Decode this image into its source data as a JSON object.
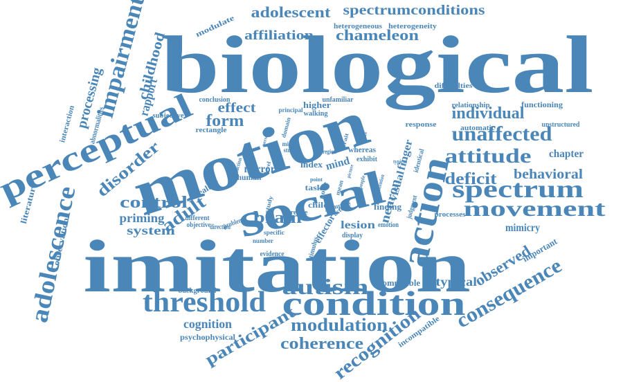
{
  "colors": {
    "word": "#4a86b8",
    "background": "#ffffff"
  },
  "words": [
    "biological",
    "imitation",
    "motion",
    "social",
    "perceptual",
    "action",
    "condition",
    "threshold",
    "autism",
    "spectrum",
    "movement",
    "adolescence",
    "impairment",
    "unaffected",
    "attitude",
    "consequence",
    "recognition",
    "participant",
    "modulation",
    "coherence",
    "cognition",
    "psychophysical",
    "adolescent",
    "spectrumconditions",
    "affiliation",
    "chameleon",
    "heterogeneous",
    "heterogeneity",
    "modulate",
    "childhood",
    "rapport",
    "processing",
    "abnormalities",
    "interaction",
    "literature",
    "observation",
    "disorder",
    "control",
    "adult",
    "priming",
    "system",
    "form",
    "effect",
    "individual",
    "deficit",
    "behavioral",
    "mimicry",
    "chapter",
    "functioning",
    "relationship",
    "difficulties",
    "automatic",
    "unstructured",
    "response",
    "identical",
    "finger",
    "visual",
    "neuron",
    "mind",
    "mirror",
    "index",
    "brain",
    "human",
    "healthy",
    "task",
    "lesion",
    "effector",
    "finding",
    "emotion",
    "processes",
    "observed",
    "important",
    "atypical",
    "compatible",
    "incompatible",
    "background",
    "evidence",
    "display",
    "number",
    "stimulus",
    "different",
    "objective",
    "direction",
    "problem",
    "relate",
    "child",
    "group",
    "activity",
    "study",
    "noise",
    "mean",
    "judgment",
    "exhibit",
    "whereas",
    "conclusion",
    "subjective",
    "rectangle",
    "higher",
    "unfamiliar",
    "principal",
    "walking",
    "domain",
    "middle",
    "studies",
    "region",
    "shape",
    "typical",
    "level",
    "point",
    "trait",
    "specific",
    "attention",
    "people",
    "focus",
    "reaction",
    "person",
    "picture"
  ]
}
